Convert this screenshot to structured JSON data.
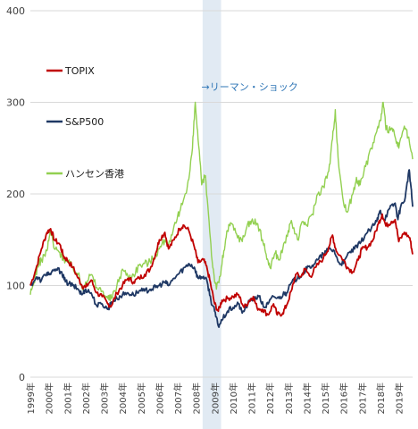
{
  "chart_data": {
    "type": "line",
    "title": "",
    "xlabel": "",
    "ylabel": "",
    "ylim": [
      0,
      400
    ],
    "yticks": [
      0,
      100,
      200,
      300,
      400
    ],
    "xlim": [
      1999.0,
      2019.75
    ],
    "xticks": [
      "1999年",
      "2000年",
      "2001年",
      "2002年",
      "2003年",
      "2004年",
      "2005年",
      "2006年",
      "2007年",
      "2008年",
      "2009年",
      "2010年",
      "2011年",
      "2012年",
      "2013年",
      "2014年",
      "2015年",
      "2016年",
      "2017年",
      "2018年",
      "2019年"
    ],
    "grid": "horizontal",
    "legend_position": "left",
    "highlight": {
      "from": 2008.35,
      "to": 2009.35,
      "color": "#dce6f1"
    },
    "annotation": {
      "text": "→リーマン・ショック",
      "x": 2009.45,
      "y": 317,
      "color": "#2e75b6"
    },
    "series": [
      {
        "name": "TOPIX",
        "color": "#c00000",
        "points": [
          [
            1999.0,
            100
          ],
          [
            1999.3,
            118
          ],
          [
            1999.6,
            140
          ],
          [
            1999.9,
            158
          ],
          [
            2000.1,
            162
          ],
          [
            2000.3,
            150
          ],
          [
            2000.6,
            145
          ],
          [
            2000.8,
            132
          ],
          [
            2001.0,
            128
          ],
          [
            2001.3,
            120
          ],
          [
            2001.6,
            108
          ],
          [
            2001.8,
            100
          ],
          [
            2002.0,
            98
          ],
          [
            2002.3,
            106
          ],
          [
            2002.6,
            92
          ],
          [
            2002.9,
            88
          ],
          [
            2003.2,
            80
          ],
          [
            2003.4,
            78
          ],
          [
            2003.7,
            92
          ],
          [
            2004.0,
            100
          ],
          [
            2004.3,
            108
          ],
          [
            2004.6,
            104
          ],
          [
            2004.9,
            108
          ],
          [
            2005.2,
            112
          ],
          [
            2005.5,
            118
          ],
          [
            2005.8,
            135
          ],
          [
            2006.0,
            150
          ],
          [
            2006.3,
            158
          ],
          [
            2006.5,
            140
          ],
          [
            2006.8,
            150
          ],
          [
            2007.1,
            162
          ],
          [
            2007.3,
            166
          ],
          [
            2007.6,
            160
          ],
          [
            2007.9,
            142
          ],
          [
            2008.1,
            125
          ],
          [
            2008.4,
            128
          ],
          [
            2008.6,
            118
          ],
          [
            2008.8,
            100
          ],
          [
            2009.0,
            80
          ],
          [
            2009.2,
            72
          ],
          [
            2009.4,
            84
          ],
          [
            2009.7,
            86
          ],
          [
            2010.0,
            88
          ],
          [
            2010.3,
            90
          ],
          [
            2010.6,
            76
          ],
          [
            2010.9,
            84
          ],
          [
            2011.1,
            88
          ],
          [
            2011.3,
            76
          ],
          [
            2011.6,
            74
          ],
          [
            2011.9,
            68
          ],
          [
            2012.2,
            80
          ],
          [
            2012.4,
            68
          ],
          [
            2012.7,
            70
          ],
          [
            2012.9,
            78
          ],
          [
            2013.2,
            96
          ],
          [
            2013.4,
            112
          ],
          [
            2013.7,
            110
          ],
          [
            2013.9,
            118
          ],
          [
            2014.2,
            110
          ],
          [
            2014.5,
            120
          ],
          [
            2014.9,
            130
          ],
          [
            2015.2,
            142
          ],
          [
            2015.4,
            155
          ],
          [
            2015.6,
            138
          ],
          [
            2016.0,
            128
          ],
          [
            2016.2,
            120
          ],
          [
            2016.5,
            115
          ],
          [
            2016.8,
            128
          ],
          [
            2017.0,
            140
          ],
          [
            2017.3,
            142
          ],
          [
            2017.6,
            150
          ],
          [
            2017.9,
            168
          ],
          [
            2018.1,
            178
          ],
          [
            2018.3,
            165
          ],
          [
            2018.6,
            170
          ],
          [
            2018.8,
            172
          ],
          [
            2019.0,
            148
          ],
          [
            2019.3,
            158
          ],
          [
            2019.6,
            152
          ],
          [
            2019.75,
            134
          ]
        ]
      },
      {
        "name": "S&P500",
        "color": "#1f3864",
        "points": [
          [
            1999.0,
            100
          ],
          [
            1999.3,
            108
          ],
          [
            1999.6,
            106
          ],
          [
            1999.9,
            114
          ],
          [
            2000.1,
            112
          ],
          [
            2000.4,
            118
          ],
          [
            2000.7,
            115
          ],
          [
            2000.9,
            104
          ],
          [
            2001.1,
            102
          ],
          [
            2001.3,
            100
          ],
          [
            2001.6,
            96
          ],
          [
            2001.8,
            90
          ],
          [
            2002.0,
            96
          ],
          [
            2002.3,
            92
          ],
          [
            2002.6,
            78
          ],
          [
            2002.9,
            80
          ],
          [
            2003.2,
            74
          ],
          [
            2003.4,
            82
          ],
          [
            2003.7,
            86
          ],
          [
            2004.0,
            90
          ],
          [
            2004.3,
            92
          ],
          [
            2004.6,
            90
          ],
          [
            2004.9,
            94
          ],
          [
            2005.2,
            94
          ],
          [
            2005.5,
            96
          ],
          [
            2005.8,
            98
          ],
          [
            2006.0,
            100
          ],
          [
            2006.3,
            104
          ],
          [
            2006.5,
            100
          ],
          [
            2006.8,
            108
          ],
          [
            2007.1,
            114
          ],
          [
            2007.4,
            120
          ],
          [
            2007.6,
            124
          ],
          [
            2007.9,
            120
          ],
          [
            2008.1,
            108
          ],
          [
            2008.4,
            110
          ],
          [
            2008.6,
            104
          ],
          [
            2008.8,
            84
          ],
          [
            2009.0,
            72
          ],
          [
            2009.2,
            56
          ],
          [
            2009.4,
            62
          ],
          [
            2009.7,
            72
          ],
          [
            2010.0,
            76
          ],
          [
            2010.3,
            80
          ],
          [
            2010.5,
            70
          ],
          [
            2010.8,
            80
          ],
          [
            2011.1,
            86
          ],
          [
            2011.4,
            88
          ],
          [
            2011.7,
            76
          ],
          [
            2011.9,
            80
          ],
          [
            2012.2,
            88
          ],
          [
            2012.5,
            86
          ],
          [
            2012.8,
            92
          ],
          [
            2012.9,
            92
          ],
          [
            2013.2,
            104
          ],
          [
            2013.5,
            108
          ],
          [
            2013.8,
            114
          ],
          [
            2014.0,
            118
          ],
          [
            2014.3,
            122
          ],
          [
            2014.6,
            128
          ],
          [
            2014.9,
            134
          ],
          [
            2015.2,
            140
          ],
          [
            2015.5,
            138
          ],
          [
            2015.7,
            126
          ],
          [
            2016.0,
            124
          ],
          [
            2016.3,
            136
          ],
          [
            2016.6,
            140
          ],
          [
            2016.9,
            146
          ],
          [
            2017.2,
            156
          ],
          [
            2017.5,
            162
          ],
          [
            2017.8,
            170
          ],
          [
            2018.0,
            182
          ],
          [
            2018.2,
            172
          ],
          [
            2018.5,
            184
          ],
          [
            2018.8,
            190
          ],
          [
            2018.95,
            172
          ],
          [
            2019.1,
            186
          ],
          [
            2019.35,
            196
          ],
          [
            2019.55,
            226
          ],
          [
            2019.65,
            210
          ],
          [
            2019.75,
            186
          ]
        ]
      },
      {
        "name": "ハンセン香港",
        "color": "#92d050",
        "points": [
          [
            1999.0,
            90
          ],
          [
            1999.2,
            104
          ],
          [
            1999.4,
            122
          ],
          [
            1999.6,
            128
          ],
          [
            1999.9,
            138
          ],
          [
            2000.1,
            160
          ],
          [
            2000.3,
            140
          ],
          [
            2000.6,
            136
          ],
          [
            2000.8,
            130
          ],
          [
            2001.0,
            126
          ],
          [
            2001.3,
            120
          ],
          [
            2001.6,
            112
          ],
          [
            2001.8,
            98
          ],
          [
            2002.0,
            104
          ],
          [
            2002.3,
            112
          ],
          [
            2002.6,
            98
          ],
          [
            2002.9,
            94
          ],
          [
            2003.2,
            86
          ],
          [
            2003.4,
            86
          ],
          [
            2003.7,
            100
          ],
          [
            2004.0,
            118
          ],
          [
            2004.3,
            110
          ],
          [
            2004.6,
            112
          ],
          [
            2004.9,
            122
          ],
          [
            2005.2,
            124
          ],
          [
            2005.5,
            126
          ],
          [
            2005.8,
            134
          ],
          [
            2006.0,
            140
          ],
          [
            2006.3,
            150
          ],
          [
            2006.6,
            148
          ],
          [
            2006.9,
            168
          ],
          [
            2007.1,
            180
          ],
          [
            2007.4,
            200
          ],
          [
            2007.6,
            216
          ],
          [
            2007.8,
            250
          ],
          [
            2007.95,
            300
          ],
          [
            2008.1,
            260
          ],
          [
            2008.3,
            210
          ],
          [
            2008.5,
            220
          ],
          [
            2008.7,
            170
          ],
          [
            2008.9,
            120
          ],
          [
            2009.1,
            96
          ],
          [
            2009.3,
            110
          ],
          [
            2009.5,
            138
          ],
          [
            2009.7,
            160
          ],
          [
            2009.9,
            168
          ],
          [
            2010.2,
            156
          ],
          [
            2010.5,
            148
          ],
          [
            2010.8,
            168
          ],
          [
            2011.0,
            170
          ],
          [
            2011.3,
            168
          ],
          [
            2011.6,
            150
          ],
          [
            2011.8,
            134
          ],
          [
            2012.0,
            120
          ],
          [
            2012.3,
            136
          ],
          [
            2012.5,
            128
          ],
          [
            2012.7,
            140
          ],
          [
            2013.0,
            160
          ],
          [
            2013.2,
            168
          ],
          [
            2013.5,
            150
          ],
          [
            2013.8,
            170
          ],
          [
            2014.0,
            166
          ],
          [
            2014.3,
            178
          ],
          [
            2014.6,
            200
          ],
          [
            2014.9,
            208
          ],
          [
            2015.2,
            225
          ],
          [
            2015.4,
            260
          ],
          [
            2015.55,
            292
          ],
          [
            2015.7,
            240
          ],
          [
            2016.0,
            190
          ],
          [
            2016.2,
            180
          ],
          [
            2016.5,
            200
          ],
          [
            2016.7,
            218
          ],
          [
            2016.9,
            210
          ],
          [
            2017.2,
            230
          ],
          [
            2017.5,
            250
          ],
          [
            2017.8,
            268
          ],
          [
            2018.0,
            280
          ],
          [
            2018.15,
            300
          ],
          [
            2018.3,
            270
          ],
          [
            2018.6,
            272
          ],
          [
            2018.8,
            262
          ],
          [
            2019.0,
            250
          ],
          [
            2019.3,
            274
          ],
          [
            2019.5,
            262
          ],
          [
            2019.75,
            238
          ]
        ]
      }
    ]
  }
}
